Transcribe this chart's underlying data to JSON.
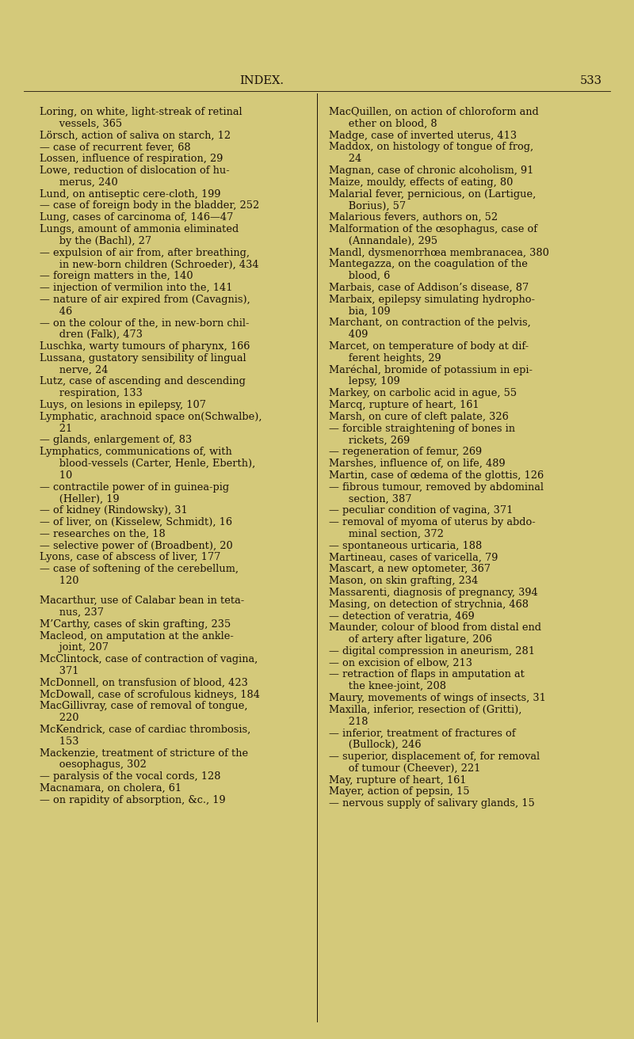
{
  "background_color": "#d4c97a",
  "text_color": "#1a1008",
  "page_title": "INDEX.",
  "page_number": "533",
  "title_fontsize": 10.5,
  "body_fontsize": 9.3,
  "left_column": [
    "Loring, on white, light-streak of retinal",
    "      vessels, 365",
    "Lörsch, action of saliva on starch, 12",
    "— case of recurrent fever, 68",
    "Lossen, influence of respiration, 29",
    "Lowe, reduction of dislocation of hu-",
    "      merus, 240",
    "Lund, on antiseptic cere-cloth, 199",
    "— case of foreign body in the bladder, 252",
    "Lung, cases of carcinoma of, 146—47",
    "Lungs, amount of ammonia eliminated",
    "      by the (Bachl), 27",
    "— expulsion of air from, after breathing,",
    "      in new-born children (Schroeder), 434",
    "— foreign matters in the, 140",
    "— injection of vermilion into the, 141",
    "— nature of air expired from (Cavagnis),",
    "      46",
    "— on the colour of the, in new-born chil-",
    "      dren (Falk), 473",
    "Luschka, warty tumours of pharynx, 166",
    "Lussana, gustatory sensibility of lingual",
    "      nerve, 24",
    "Lutz, case of ascending and descending",
    "      respiration, 133",
    "Luys, on lesions in epilepsy, 107",
    "Lymphatic, arachnoid space on(Schwalbe),",
    "      21",
    "— glands, enlargement of, 83",
    "Lymphatics, communications of, with",
    "      blood-vessels (Carter, Henle, Eberth),",
    "      10",
    "— contractile power of in guinea-pig",
    "      (Heller), 19",
    "— of kidney (Rindowsky), 31",
    "— of liver, on (Kisselew, Schmidt), 16",
    "— researches on the, 18",
    "— selective power of (Broadbent), 20",
    "Lyons, case of abscess of liver, 177",
    "— case of softening of the cerebellum,",
    "      120",
    "",
    "Macarthur, use of Calabar bean in teta-",
    "      nus, 237",
    "M’Carthy, cases of skin grafting, 235",
    "Macleod, on amputation at the ankle-",
    "      joint, 207",
    "McClintock, case of contraction of vagina,",
    "      371",
    "McDonnell, on transfusion of blood, 423",
    "McDowall, case of scrofulous kidneys, 184",
    "MacGillivray, case of removal of tongue,",
    "      220",
    "McKendrick, case of cardiac thrombosis,",
    "      153",
    "Mackenzie, treatment of stricture of the",
    "      oesophagus, 302",
    "— paralysis of the vocal cords, 128",
    "Macnamara, on cholera, 61",
    "— on rapidity of absorption, &c., 19"
  ],
  "right_column": [
    "MacQuillen, on action of chloroform and",
    "      ether on blood, 8",
    "Madge, case of inverted uterus, 413",
    "Maddox, on histology of tongue of frog,",
    "      24",
    "Magnan, case of chronic alcoholism, 91",
    "Maize, mouldy, effects of eating, 80",
    "Malarial fever, pernicious, on (Lartigue,",
    "      Borius), 57",
    "Malarious fevers, authors on, 52",
    "Malformation of the œsophagus, case of",
    "      (Annandale), 295",
    "Mandl, dysmenorrhœa membranacea, 380",
    "Mantegazza, on the coagulation of the",
    "      blood, 6",
    "Marbais, case of Addison’s disease, 87",
    "Marbaix, epilepsy simulating hydropho-",
    "      bia, 109",
    "Marchant, on contraction of the pelvis,",
    "      409",
    "Marcet, on temperature of body at dif-",
    "      ferent heights, 29",
    "Maréchal, bromide of potassium in epi-",
    "      lepsy, 109",
    "Markey, on carbolic acid in ague, 55",
    "Marcq, rupture of heart, 161",
    "Marsh, on cure of cleft palate, 326",
    "— forcible straightening of bones in",
    "      rickets, 269",
    "— regeneration of femur, 269",
    "Marshes, influence of, on life, 489",
    "Martin, case of œdema of the glottis, 126",
    "— fibrous tumour, removed by abdominal",
    "      section, 387",
    "— peculiar condition of vagina, 371",
    "— removal of myoma of uterus by abdo-",
    "      minal section, 372",
    "— spontaneous urticaria, 188",
    "Martineau, cases of varicella, 79",
    "Mascart, a new optometer, 367",
    "Mason, on skin grafting, 234",
    "Massarenti, diagnosis of pregnancy, 394",
    "Masing, on detection of strychnia, 468",
    "— detection of veratria, 469",
    "Maunder, colour of blood from distal end",
    "      of artery after ligature, 206",
    "— digital compression in aneurism, 281",
    "— on excision of elbow, 213",
    "— retraction of flaps in amputation at",
    "      the knee-joint, 208",
    "Maury, movements of wings of insects, 31",
    "Maxilla, inferior, resection of (Gritti),",
    "      218",
    "— inferior, treatment of fractures of",
    "      (Bullock), 246",
    "— superior, displacement of, for removal",
    "      of tumour (Cheever), 221",
    "May, rupture of heart, 161",
    "Mayer, action of pepsin, 15",
    "— nervous supply of salivary glands, 15"
  ]
}
